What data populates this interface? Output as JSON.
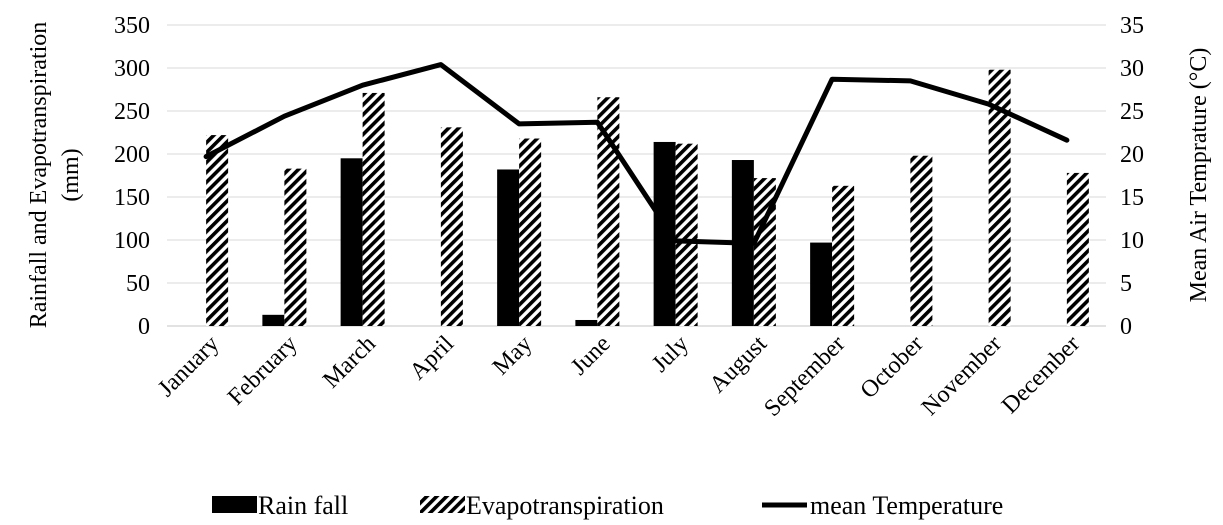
{
  "chart_data": {
    "type": "bar",
    "categories": [
      "January",
      "February",
      "March",
      "April",
      "May",
      "June",
      "July",
      "August",
      "September",
      "October",
      "November",
      "December"
    ],
    "series": [
      {
        "name": "Rain fall",
        "kind": "bar",
        "axis": "left",
        "values": [
          0,
          13,
          195,
          0,
          182,
          7,
          214,
          193,
          97,
          0,
          0,
          0
        ]
      },
      {
        "name": "Evapotranspiration",
        "kind": "bar-hatched",
        "axis": "left",
        "values": [
          222,
          183,
          271,
          231,
          218,
          266,
          212,
          172,
          163,
          198,
          298,
          178
        ]
      },
      {
        "name": "mean Temperature",
        "kind": "line",
        "axis": "right",
        "values": [
          19.7,
          24.4,
          28.0,
          30.4,
          23.5,
          23.7,
          9.9,
          9.6,
          28.7,
          28.5,
          25.8,
          21.6
        ]
      }
    ],
    "ylabel": "Rainfall and Evapotranspiration (mm)",
    "ylabel_lines": [
      "Rainfall and Evapotranspiration",
      "(mm)"
    ],
    "y2label": "Mean Air Temprature (°C)",
    "ylim": [
      0,
      350
    ],
    "y2lim": [
      0,
      35
    ],
    "yticks": [
      "0",
      "50",
      "100",
      "150",
      "200",
      "250",
      "300",
      "350"
    ],
    "y2ticks": [
      "0",
      "5",
      "10",
      "15",
      "20",
      "25",
      "30",
      "35"
    ],
    "grid": true,
    "legend_position": "bottom",
    "colors": {
      "rain": "#000000",
      "evap_hatch": "#000000",
      "temp": "#000000",
      "grid": "#d9d9d9"
    }
  }
}
